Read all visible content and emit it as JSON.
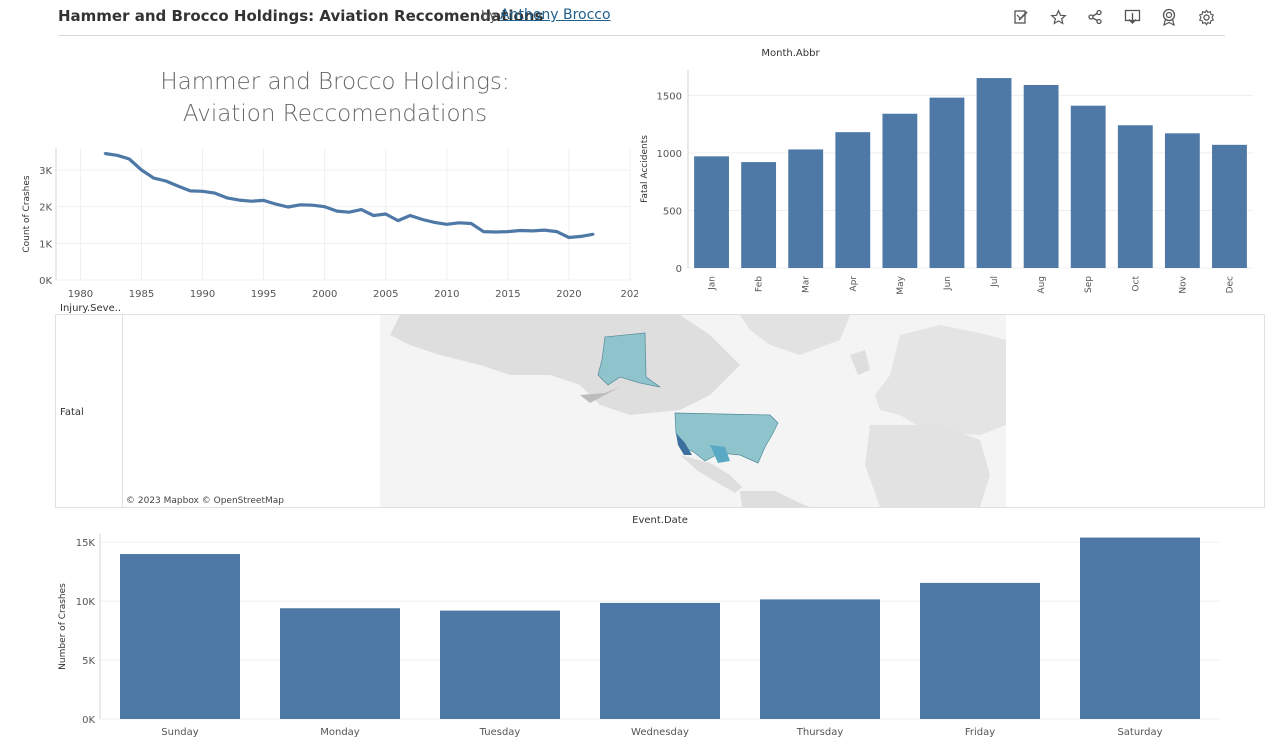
{
  "header": {
    "title": "Hammer and Brocco Holdings: Aviation Reccomendations",
    "by": "by",
    "author": "Anthony Brocco",
    "icons": [
      "edit-icon",
      "favorite-star-icon",
      "share-icon",
      "download-icon",
      "badge-icon",
      "settings-gear-icon"
    ]
  },
  "dashboard_title": "Hammer and Brocco Holdings: Aviation Reccomendations",
  "map": {
    "field_header": "Injury.Seve..",
    "row_label": "Fatal",
    "attribution": "© 2023 Mapbox © OpenStreetMap"
  },
  "colors": {
    "bar": "#4e79a7",
    "line": "#4e79a7",
    "map_fill": "#8fc4cd",
    "map_dark": "#2f78a8",
    "land": "#dcdcdc",
    "water": "#f2f2f2"
  },
  "chart_data": [
    {
      "type": "line",
      "title": "",
      "xlabel": "",
      "ylabel": "Count of Crashes",
      "x_ticks": [
        "1980",
        "1985",
        "1990",
        "1995",
        "2000",
        "2005",
        "2010",
        "2015",
        "2020",
        "202"
      ],
      "y_ticks": [
        "0K",
        "1K",
        "2K",
        "3K"
      ],
      "xlim": [
        1978,
        2025
      ],
      "ylim": [
        0,
        3600
      ],
      "x": [
        1982,
        1983,
        1984,
        1985,
        1986,
        1987,
        1988,
        1989,
        1990,
        1991,
        1992,
        1993,
        1994,
        1995,
        1996,
        1997,
        1998,
        1999,
        2000,
        2001,
        2002,
        2003,
        2004,
        2005,
        2006,
        2007,
        2008,
        2009,
        2010,
        2011,
        2012,
        2013,
        2014,
        2015,
        2016,
        2017,
        2018,
        2019,
        2020,
        2021,
        2022
      ],
      "values": [
        3450,
        3400,
        3300,
        3000,
        2780,
        2700,
        2560,
        2430,
        2420,
        2370,
        2240,
        2180,
        2150,
        2170,
        2070,
        1990,
        2050,
        2040,
        2000,
        1880,
        1850,
        1920,
        1760,
        1800,
        1620,
        1760,
        1650,
        1570,
        1520,
        1560,
        1540,
        1320,
        1310,
        1320,
        1350,
        1340,
        1360,
        1320,
        1160,
        1190,
        1250
      ]
    },
    {
      "type": "bar",
      "title": "Month.Abbr",
      "xlabel": "",
      "ylabel": "Fatal Accidents",
      "categories": [
        "Jan",
        "Feb",
        "Mar",
        "Apr",
        "May",
        "Jun",
        "Jul",
        "Aug",
        "Sep",
        "Oct",
        "Nov",
        "Dec"
      ],
      "values": [
        970,
        920,
        1030,
        1180,
        1340,
        1480,
        1650,
        1590,
        1410,
        1240,
        1170,
        1070
      ],
      "y_ticks": [
        "0",
        "500",
        "1000",
        "1500"
      ],
      "ylim": [
        0,
        1720
      ]
    },
    {
      "type": "bar",
      "title": "Event.Date",
      "xlabel": "",
      "ylabel": "Number of Crashes",
      "categories": [
        "Sunday",
        "Monday",
        "Tuesday",
        "Wednesday",
        "Thursday",
        "Friday",
        "Saturday"
      ],
      "values": [
        14000,
        9400,
        9200,
        9850,
        10150,
        11550,
        15400
      ],
      "y_ticks": [
        "0K",
        "5K",
        "10K",
        "15K"
      ],
      "ylim": [
        0,
        15700
      ]
    }
  ]
}
